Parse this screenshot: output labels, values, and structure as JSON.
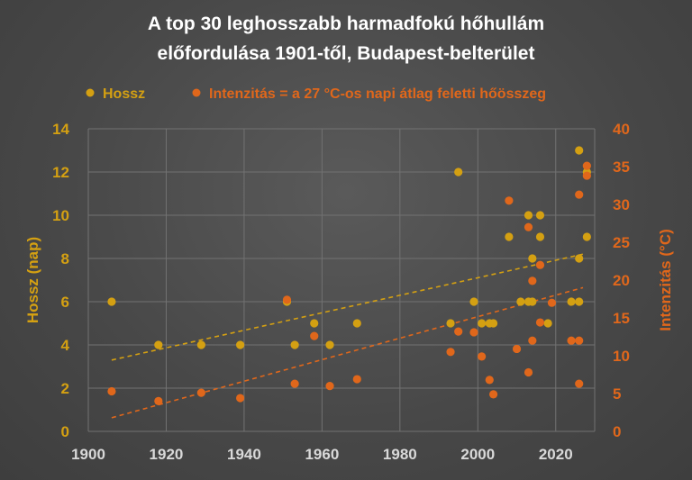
{
  "chart_data": {
    "type": "scatter",
    "title_line1": "A top 30 leghosszabb harmadfokú hőhullám",
    "title_line2": "előfordulása 1901-től, Budapest-belterület",
    "xlim": [
      1900,
      2030
    ],
    "x_ticks": [
      "1900",
      "1920",
      "1940",
      "1960",
      "1980",
      "2000",
      "2020"
    ],
    "y_left": {
      "label": "Hossz (nap)",
      "lim": [
        0,
        14
      ],
      "ticks": [
        "0",
        "2",
        "4",
        "6",
        "8",
        "10",
        "12",
        "14"
      ]
    },
    "y_right": {
      "label": "Intenzitás (°C)",
      "lim": [
        0,
        40
      ],
      "ticks": [
        "0",
        "5",
        "10",
        "15",
        "20",
        "25",
        "30",
        "35",
        "40"
      ]
    },
    "grid": true,
    "legend_position": "top",
    "series": [
      {
        "name": "Hossz",
        "axis": "left",
        "color": "#D4A012",
        "trend": [
          [
            1906,
            3.3
          ],
          [
            2027,
            8.2
          ]
        ],
        "points": [
          [
            1906,
            6
          ],
          [
            1918,
            4
          ],
          [
            1929,
            4
          ],
          [
            1939,
            4
          ],
          [
            1951,
            6
          ],
          [
            1953,
            4
          ],
          [
            1958,
            5
          ],
          [
            1962,
            4
          ],
          [
            1969,
            5
          ],
          [
            1993,
            5
          ],
          [
            1995,
            12
          ],
          [
            1999,
            6
          ],
          [
            2001,
            5
          ],
          [
            2003,
            5
          ],
          [
            2004,
            5
          ],
          [
            2008,
            9
          ],
          [
            2011,
            6
          ],
          [
            2013,
            10
          ],
          [
            2013,
            6
          ],
          [
            2014,
            8
          ],
          [
            2014,
            6
          ],
          [
            2016,
            10
          ],
          [
            2016,
            9
          ],
          [
            2018,
            5
          ],
          [
            2024,
            6
          ],
          [
            2026,
            13
          ],
          [
            2026,
            8
          ],
          [
            2026,
            6
          ],
          [
            2028,
            9
          ],
          [
            2028,
            12
          ]
        ]
      },
      {
        "name": "Intenzitás = a 27 °C-os napi átlag feletti hőösszeg",
        "axis": "right",
        "color": "#E0671B",
        "trend": [
          [
            1906,
            1.8
          ],
          [
            2027,
            19
          ]
        ],
        "points": [
          [
            1906,
            5.3
          ],
          [
            1918,
            4
          ],
          [
            1929,
            5.1
          ],
          [
            1939,
            4.4
          ],
          [
            1951,
            17.4
          ],
          [
            1953,
            6.3
          ],
          [
            1958,
            12.6
          ],
          [
            1962,
            6
          ],
          [
            1969,
            6.9
          ],
          [
            1993,
            10.5
          ],
          [
            1995,
            13.2
          ],
          [
            1999,
            13.1
          ],
          [
            2001,
            9.9
          ],
          [
            2003,
            6.8
          ],
          [
            2004,
            4.9
          ],
          [
            2008,
            30.5
          ],
          [
            2010,
            10.9
          ],
          [
            2013,
            27
          ],
          [
            2013,
            7.8
          ],
          [
            2014,
            12
          ],
          [
            2014,
            19.9
          ],
          [
            2016,
            14.4
          ],
          [
            2016,
            22
          ],
          [
            2019,
            17
          ],
          [
            2024,
            12
          ],
          [
            2026,
            31.3
          ],
          [
            2026,
            12
          ],
          [
            2026,
            6.3
          ],
          [
            2028,
            33.8
          ],
          [
            2028,
            35.1
          ]
        ]
      }
    ]
  }
}
